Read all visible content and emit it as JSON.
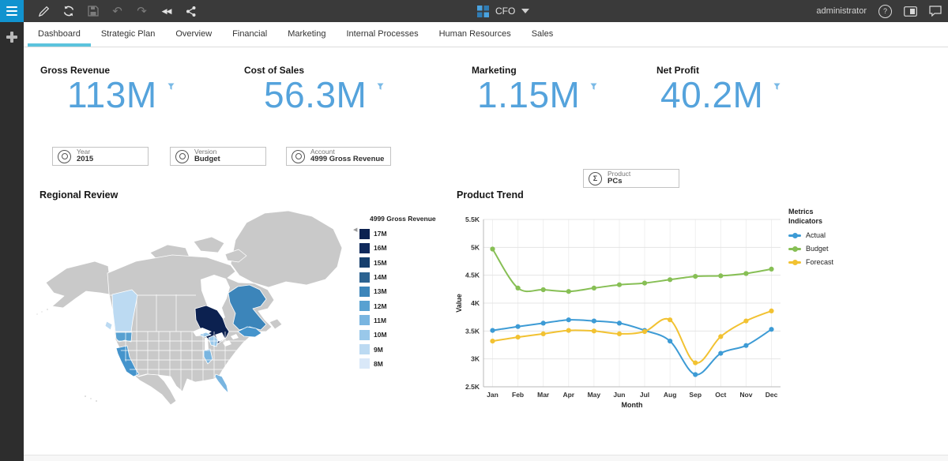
{
  "topbar": {
    "title": "CFO",
    "user": "administrator"
  },
  "tabs": {
    "active_index": 0,
    "items": [
      "Dashboard",
      "Strategic Plan",
      "Overview",
      "Financial",
      "Marketing",
      "Internal Processes",
      "Human Resources",
      "Sales"
    ],
    "active_underline_color": "#5bc3dd"
  },
  "kpis": [
    {
      "label": "Gross Revenue",
      "value": "113M"
    },
    {
      "label": "Cost of Sales",
      "value": "56.3M"
    },
    {
      "label": "Marketing",
      "value": "1.15M"
    },
    {
      "label": "Net Profit",
      "value": "40.2M"
    }
  ],
  "kpi_value_color": "#55a3dc",
  "filters": [
    {
      "label": "Year",
      "value": "2015"
    },
    {
      "label": "Version",
      "value": "Budget"
    },
    {
      "label": "Account",
      "value": "4999 Gross Revenue"
    }
  ],
  "product_filter": {
    "label": "Product",
    "value": "PCs"
  },
  "sections": {
    "regional": "Regional Review",
    "trend": "Product Trend"
  },
  "regional": {
    "legend_title": "4999 Gross Revenue",
    "legend": [
      {
        "label": "17M",
        "color": "#0c2150"
      },
      {
        "label": "16M",
        "color": "#102a5c"
      },
      {
        "label": "15M",
        "color": "#163f6d"
      },
      {
        "label": "14M",
        "color": "#2c6391"
      },
      {
        "label": "13M",
        "color": "#3c85ba"
      },
      {
        "label": "12M",
        "color": "#58a1d1"
      },
      {
        "label": "11M",
        "color": "#79b5e0"
      },
      {
        "label": "10M",
        "color": "#99c8ea"
      },
      {
        "label": "9M",
        "color": "#bcdaf2"
      },
      {
        "label": "8M",
        "color": "#d9e8f8"
      }
    ]
  },
  "map": {
    "land_color": "#c9c9c9",
    "regions": {
      "ontario": "#0c2150",
      "quebec": "#3c85ba",
      "maritimes": "#4594cc",
      "california": "#4594cc",
      "washington": "#58a1d1",
      "british-columbia": "#bcdaf2",
      "vancouver-island": "#bcdaf2",
      "michigan": "#99c8ea",
      "michigan-up": "#99c8ea",
      "illinois": "#79b5e0",
      "florida": "#79b5e0"
    }
  },
  "chart_data": {
    "type": "line",
    "title": "Product Trend",
    "categories": [
      "Jan",
      "Feb",
      "Mar",
      "Apr",
      "May",
      "Jun",
      "Jul",
      "Aug",
      "Sep",
      "Oct",
      "Nov",
      "Dec"
    ],
    "xlabel": "Month",
    "ylabel": "Value",
    "ylim": [
      2500,
      5500
    ],
    "ytick_step": 500,
    "yticks": [
      "2.5K",
      "3K",
      "3.5K",
      "4K",
      "4.5K",
      "5K",
      "5.5K"
    ],
    "grid": true,
    "legend_title": "Metrics Indicators",
    "legend_position": "top-right",
    "series": [
      {
        "name": "Actual",
        "color": "#3d9bd5",
        "values": [
          3510,
          3580,
          3640,
          3700,
          3680,
          3640,
          3510,
          3320,
          2720,
          3100,
          3240,
          3530
        ]
      },
      {
        "name": "Budget",
        "color": "#87bf55",
        "values": [
          4970,
          4270,
          4240,
          4210,
          4270,
          4330,
          4360,
          4420,
          4480,
          4490,
          4530,
          4610
        ]
      },
      {
        "name": "Forecast",
        "color": "#f2c232",
        "values": [
          3320,
          3390,
          3450,
          3510,
          3500,
          3450,
          3490,
          3700,
          2930,
          3400,
          3680,
          3860
        ]
      }
    ]
  }
}
